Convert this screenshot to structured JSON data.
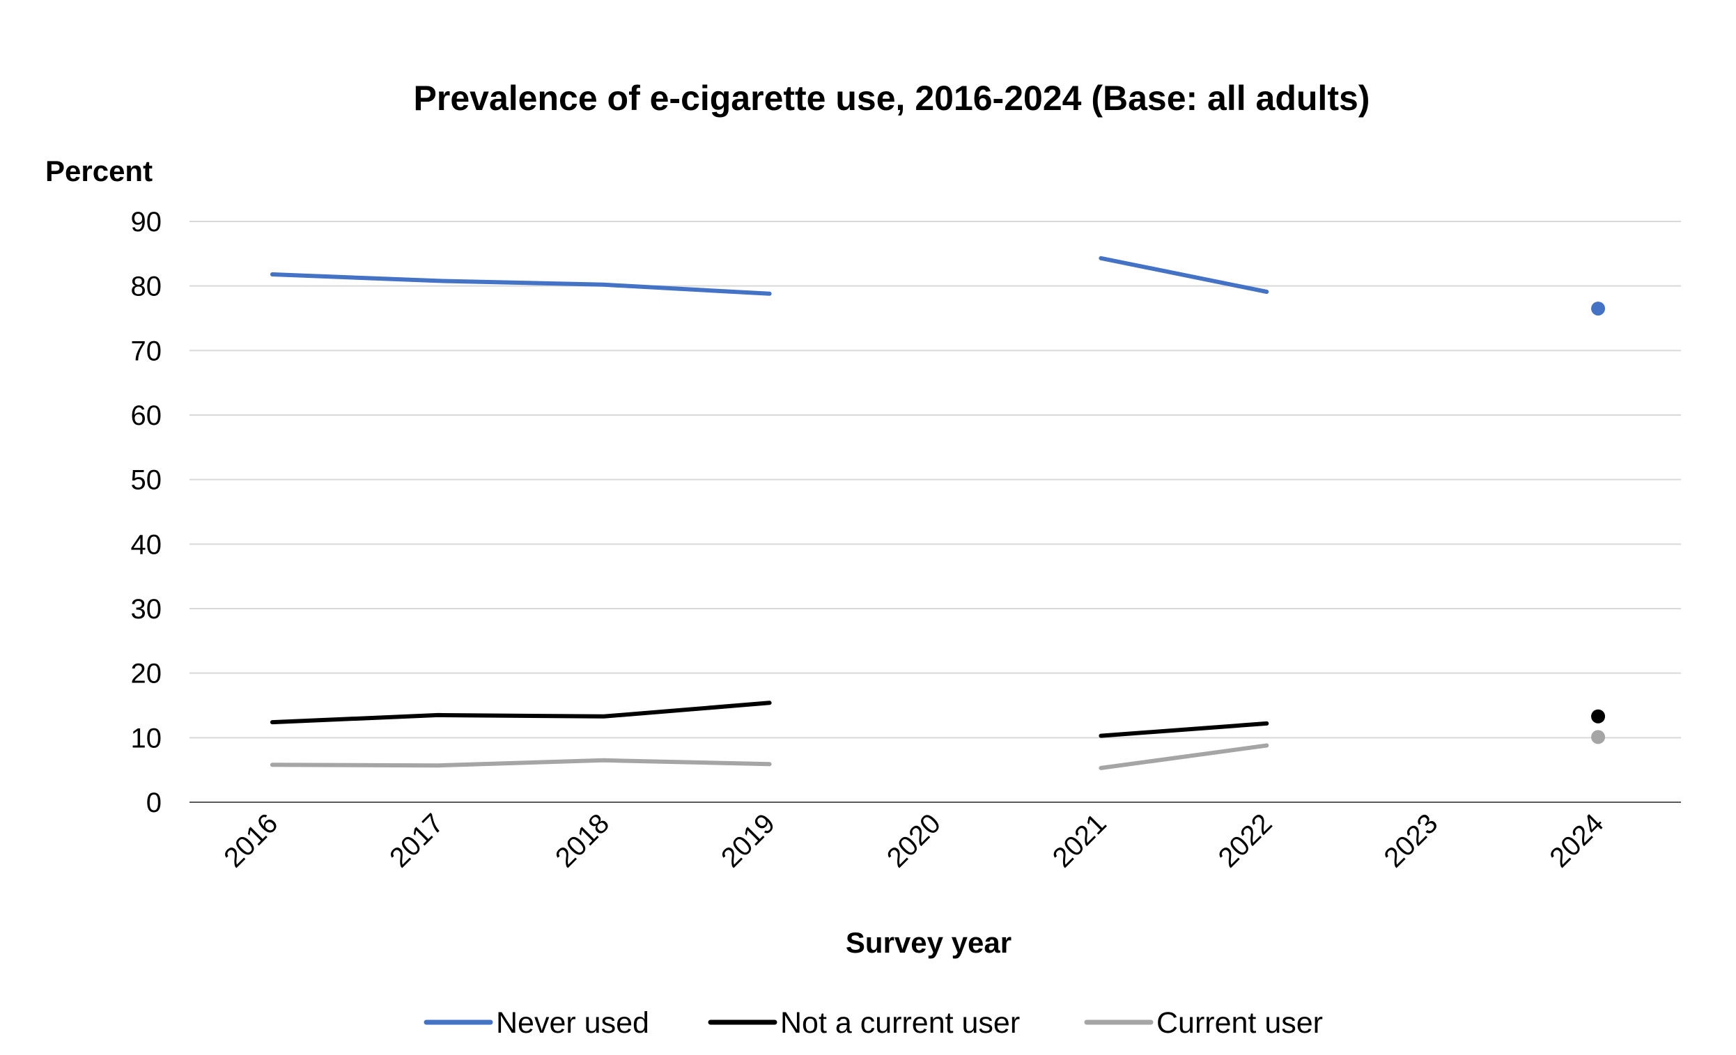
{
  "chart_data": {
    "type": "line",
    "title": "Prevalence of e-cigarette use, 2016-2024 (Base: all adults)",
    "xlabel": "Survey year",
    "ylabel": "Percent",
    "categories": [
      "2016",
      "2017",
      "2018",
      "2019",
      "2020",
      "2021",
      "2022",
      "2023",
      "2024"
    ],
    "ylim": [
      0,
      90
    ],
    "yticks": [
      "0",
      "10",
      "20",
      "30",
      "40",
      "50",
      "60",
      "70",
      "80",
      "90"
    ],
    "grid": true,
    "legend_position": "bottom",
    "series": [
      {
        "name": "Never used",
        "color": "#4472C4",
        "values": [
          81.8,
          80.8,
          80.2,
          78.8,
          null,
          84.3,
          79.1,
          null,
          76.5
        ]
      },
      {
        "name": "Not a current user",
        "color": "#000000",
        "values": [
          12.4,
          13.5,
          13.3,
          15.4,
          null,
          10.3,
          12.2,
          null,
          13.3
        ]
      },
      {
        "name": "Current user",
        "color": "#A5A5A5",
        "values": [
          5.8,
          5.7,
          6.5,
          5.9,
          null,
          5.3,
          8.8,
          null,
          10.1
        ]
      }
    ]
  }
}
